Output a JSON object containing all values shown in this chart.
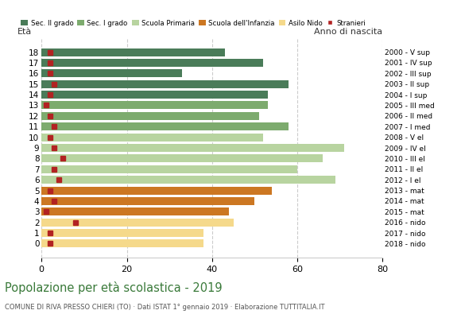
{
  "ages": [
    18,
    17,
    16,
    15,
    14,
    13,
    12,
    11,
    10,
    9,
    8,
    7,
    6,
    5,
    4,
    3,
    2,
    1,
    0
  ],
  "years": [
    "2000 - V sup",
    "2001 - IV sup",
    "2002 - III sup",
    "2003 - II sup",
    "2004 - I sup",
    "2005 - III med",
    "2006 - II med",
    "2007 - I med",
    "2008 - V el",
    "2009 - IV el",
    "2010 - III el",
    "2011 - II el",
    "2012 - I el",
    "2013 - mat",
    "2014 - mat",
    "2015 - mat",
    "2016 - nido",
    "2017 - nido",
    "2018 - nido"
  ],
  "bar_values": [
    43,
    52,
    33,
    58,
    53,
    53,
    51,
    58,
    52,
    71,
    66,
    60,
    69,
    54,
    50,
    44,
    45,
    38,
    38
  ],
  "foreigners": [
    2,
    2,
    2,
    3,
    2,
    1,
    2,
    3,
    2,
    3,
    5,
    3,
    4,
    2,
    3,
    1,
    8,
    2,
    2
  ],
  "bar_colors": [
    "#4a7c59",
    "#4a7c59",
    "#4a7c59",
    "#4a7c59",
    "#4a7c59",
    "#7dab6e",
    "#7dab6e",
    "#7dab6e",
    "#b8d4a0",
    "#b8d4a0",
    "#b8d4a0",
    "#b8d4a0",
    "#b8d4a0",
    "#cc7722",
    "#cc7722",
    "#cc7722",
    "#f5d98b",
    "#f5d98b",
    "#f5d98b"
  ],
  "legend_labels": [
    "Sec. II grado",
    "Sec. I grado",
    "Scuola Primaria",
    "Scuola dell'Infanzia",
    "Asilo Nido",
    "Stranieri"
  ],
  "legend_colors": [
    "#4a7c59",
    "#7dab6e",
    "#b8d4a0",
    "#cc7722",
    "#f5d98b",
    "#b22222"
  ],
  "title": "Popolazione per età scolastica - 2019",
  "subtitle": "COMUNE DI RIVA PRESSO CHIERI (TO) · Dati ISTAT 1° gennaio 2019 · Elaborazione TUTTITALIA.IT",
  "xlabel_eta": "Età",
  "xlabel_anno": "Anno di nascita",
  "xlim": [
    0,
    80
  ],
  "xticks": [
    0,
    20,
    40,
    60,
    80
  ],
  "foreigners_color": "#b22222",
  "grid_color": "#cccccc",
  "bg_color": "#ffffff"
}
